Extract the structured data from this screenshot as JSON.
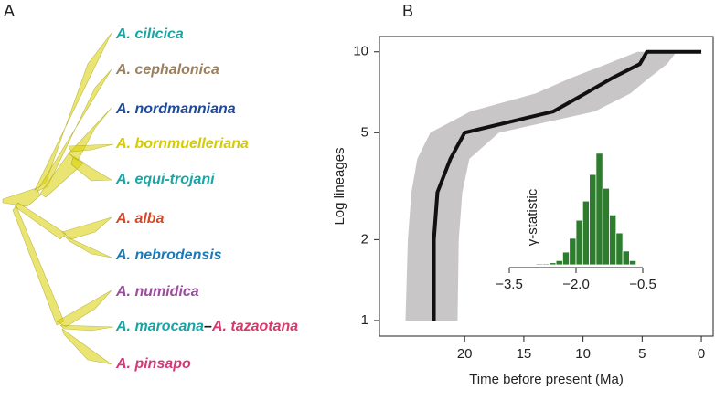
{
  "panels": [
    "A",
    "B"
  ],
  "tree": {
    "taxa": [
      [
        {
          "name": "A. cilicica",
          "color": "#1aa5a5"
        }
      ],
      [
        {
          "name": "A. cephalonica",
          "color": "#9a8060"
        }
      ],
      [
        {
          "name": "A. nordmanniana",
          "color": "#1e4a9a"
        }
      ],
      [
        {
          "name": "A. bornmuelleriana",
          "color": "#d4cb00"
        }
      ],
      [
        {
          "name": "A. equi-trojani",
          "color": "#1aa5a5"
        }
      ],
      [
        {
          "name": "A. alba",
          "color": "#d4472a"
        }
      ],
      [
        {
          "name": "A. nebrodensis",
          "color": "#1a7ab8"
        }
      ],
      [
        {
          "name": "A. numidica",
          "color": "#9a4d9a"
        }
      ],
      [
        {
          "name": "A. marocana",
          "color": "#1aa5a5"
        },
        {
          "name": "–",
          "color": "#111111"
        },
        {
          "name": "A. tazaotana",
          "color": "#d43a6a"
        }
      ],
      [
        {
          "name": "A. pinsapo",
          "color": "#d43a7a"
        }
      ]
    ]
  },
  "chart_data": [
    {
      "type": "line",
      "xlabel": "Time before present (Ma)",
      "ylabel": "Log lineages",
      "x": [
        22.6,
        22.6,
        22.3,
        21.2,
        20.0,
        12.5,
        9.8,
        7.5,
        5.2,
        4.6,
        0
      ],
      "values": [
        1,
        2,
        3,
        4,
        5,
        6,
        7,
        8,
        9,
        10,
        10
      ],
      "color": "#111111",
      "band": {
        "lineages": [
          1,
          2,
          3,
          4,
          5,
          6,
          7,
          8,
          9,
          10
        ],
        "older": [
          25.0,
          24.8,
          24.5,
          24.0,
          22.9,
          19.5,
          14.0,
          11.0,
          8.0,
          5.4
        ],
        "younger": [
          20.6,
          20.5,
          20.2,
          19.6,
          17.1,
          9.0,
          6.0,
          4.4,
          2.9,
          2.1
        ],
        "color": "#c8c6c6"
      },
      "xlim": [
        27.2,
        -1.0
      ],
      "ylim": [
        0.875,
        11.4
      ],
      "log_y": true,
      "xticks": [
        20,
        15,
        10,
        5,
        0
      ],
      "yticks": [
        1,
        2,
        5,
        10
      ]
    },
    {
      "type": "histogram",
      "xlabel": "γ-statistic",
      "bins": [
        -2.9,
        -2.75,
        -2.6,
        -2.45,
        -2.3,
        -2.15,
        -2.0,
        -1.85,
        -1.7,
        -1.55,
        -1.4,
        -1.25,
        -1.1,
        -0.95,
        -0.8,
        -0.65
      ],
      "counts": [
        1,
        1,
        2,
        4,
        12,
        25,
        42,
        60,
        85,
        105,
        72,
        47,
        30,
        13,
        4
      ],
      "color": "#2e7d2e",
      "xlim": [
        -3.5,
        -0.5
      ],
      "ylim": [
        0,
        110
      ],
      "xticks": [
        {
          "value": -3.5,
          "label": "−3.5"
        },
        {
          "value": -2.0,
          "label": "−2.0"
        },
        {
          "value": -0.5,
          "label": "−0.5"
        }
      ]
    }
  ]
}
